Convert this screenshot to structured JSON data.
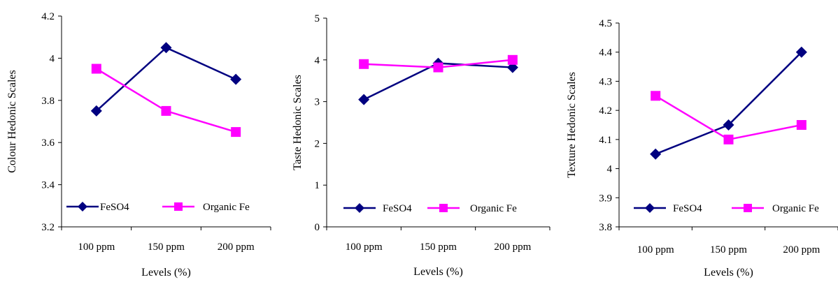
{
  "colors": {
    "feso4": "#000080",
    "organic": "#ff00ff"
  },
  "chart_data": [
    {
      "type": "line",
      "categories": [
        "100 ppm",
        "150 ppm",
        "200 ppm"
      ],
      "series": [
        {
          "name": "FeSO4",
          "values": [
            3.75,
            4.05,
            3.9
          ],
          "marker": "diamond"
        },
        {
          "name": "Organic Fe",
          "values": [
            3.95,
            3.75,
            3.65
          ],
          "marker": "square"
        }
      ],
      "ylim": [
        3.2,
        4.2
      ],
      "yticks": [
        "3.2",
        "3.4",
        "3.6",
        "3.8",
        "4",
        "4.2"
      ],
      "xlabel": "Levels (%)",
      "ylabel": "Colour Hedonic Scales",
      "grid": false,
      "legend": "bottom"
    },
    {
      "type": "line",
      "categories": [
        "100 ppm",
        "150 ppm",
        "200 ppm"
      ],
      "series": [
        {
          "name": "FeSO4",
          "values": [
            3.05,
            3.92,
            3.82
          ],
          "marker": "diamond"
        },
        {
          "name": "Organic Fe",
          "values": [
            3.9,
            3.82,
            4.0
          ],
          "marker": "square"
        }
      ],
      "ylim": [
        0,
        5
      ],
      "yticks": [
        "0",
        "1",
        "2",
        "3",
        "4",
        "5"
      ],
      "xlabel": "Levels (%)",
      "ylabel": "Taste Hedonic Scales",
      "grid": false,
      "legend": "bottom"
    },
    {
      "type": "line",
      "categories": [
        "100 ppm",
        "150 ppm",
        "200 ppm"
      ],
      "series": [
        {
          "name": "FeSO4",
          "values": [
            4.05,
            4.15,
            4.4
          ],
          "marker": "diamond"
        },
        {
          "name": "Organic Fe",
          "values": [
            4.25,
            4.1,
            4.15
          ],
          "marker": "square"
        }
      ],
      "ylim": [
        3.8,
        4.5
      ],
      "yticks": [
        "3.8",
        "3.9",
        "4",
        "4.1",
        "4.2",
        "4.3",
        "4.4",
        "4.5"
      ],
      "xlabel": "Levels (%)",
      "ylabel": "Texture Hedonic Scales",
      "grid": false,
      "legend": "bottom"
    }
  ]
}
